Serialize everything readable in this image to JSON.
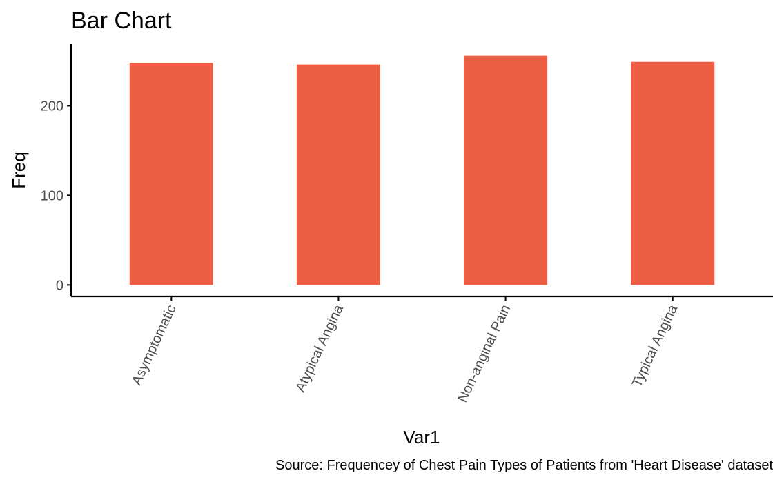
{
  "chart_data": {
    "type": "bar",
    "title": "Bar Chart",
    "xlabel": "Var1",
    "ylabel": "Freq",
    "caption": "Source: Frequencey of Chest Pain Types of Patients from 'Heart Disease' dataset",
    "categories": [
      "Asymptomatic",
      "Atypical Angina",
      "Non-anginal Pain",
      "Typical Angina"
    ],
    "values": [
      248,
      246,
      256,
      249
    ],
    "yticks": [
      0,
      100,
      200
    ],
    "ytick_labels": [
      "0",
      "100",
      "200"
    ],
    "ylim": [
      -12.8,
      268.8
    ],
    "grid": false,
    "legend": "none",
    "bar_color": "#EE5E44",
    "axis_color": "#000000",
    "tick_label_color": "#4D4D4D"
  }
}
